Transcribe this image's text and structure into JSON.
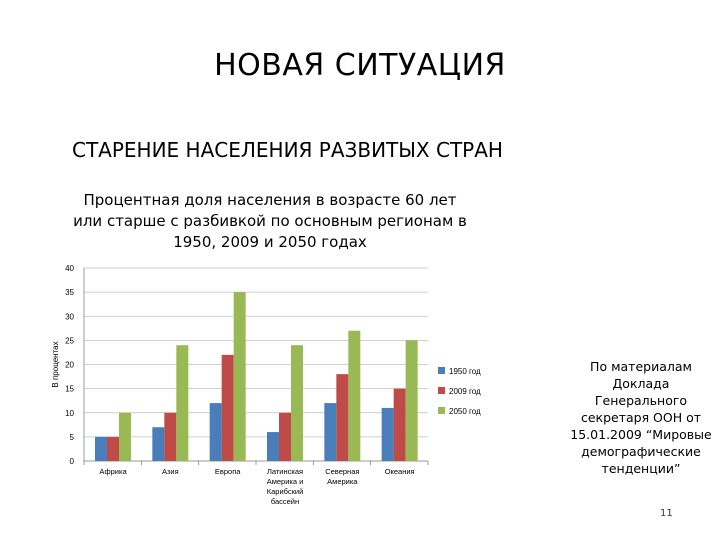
{
  "slide": {
    "title": "НОВАЯ СИТУАЦИЯ",
    "subtitle": "СТАРЕНИЕ НАСЕЛЕНИЯ РАЗВИТЫХ СТРАН",
    "source_note": "По материалам Доклада Генерального секретаря ООН от 15.01.2009 “Мировые демографические тенденции”",
    "page_number": "11"
  },
  "chart_data": {
    "type": "bar",
    "title": "Процентная доля населения в возрасте 60 лет или старше с разбивкой по основным регионам в 1950, 2009 и 2050 годах",
    "ylabel": "В процентах",
    "xlabel": "",
    "ylim": [
      0,
      40
    ],
    "yticks": [
      "0",
      "5",
      "10",
      "15",
      "20",
      "25",
      "30",
      "35",
      "40"
    ],
    "grid": true,
    "legend_position": "right",
    "categories": [
      [
        "Африка"
      ],
      [
        "Азия"
      ],
      [
        "Европа"
      ],
      [
        "Латинская",
        "Америка и",
        "Карибский",
        "бассейн"
      ],
      [
        "Северная",
        "Америка"
      ],
      [
        "Океания"
      ]
    ],
    "series": [
      {
        "name": "1950 год",
        "color": "#4a7ebb",
        "values": [
          5,
          7,
          12,
          6,
          12,
          11
        ]
      },
      {
        "name": "2009 год",
        "color": "#be4b48",
        "values": [
          5,
          10,
          22,
          10,
          18,
          15
        ]
      },
      {
        "name": "2050 год",
        "color": "#98b954",
        "values": [
          10,
          24,
          35,
          24,
          27,
          25
        ]
      }
    ]
  }
}
